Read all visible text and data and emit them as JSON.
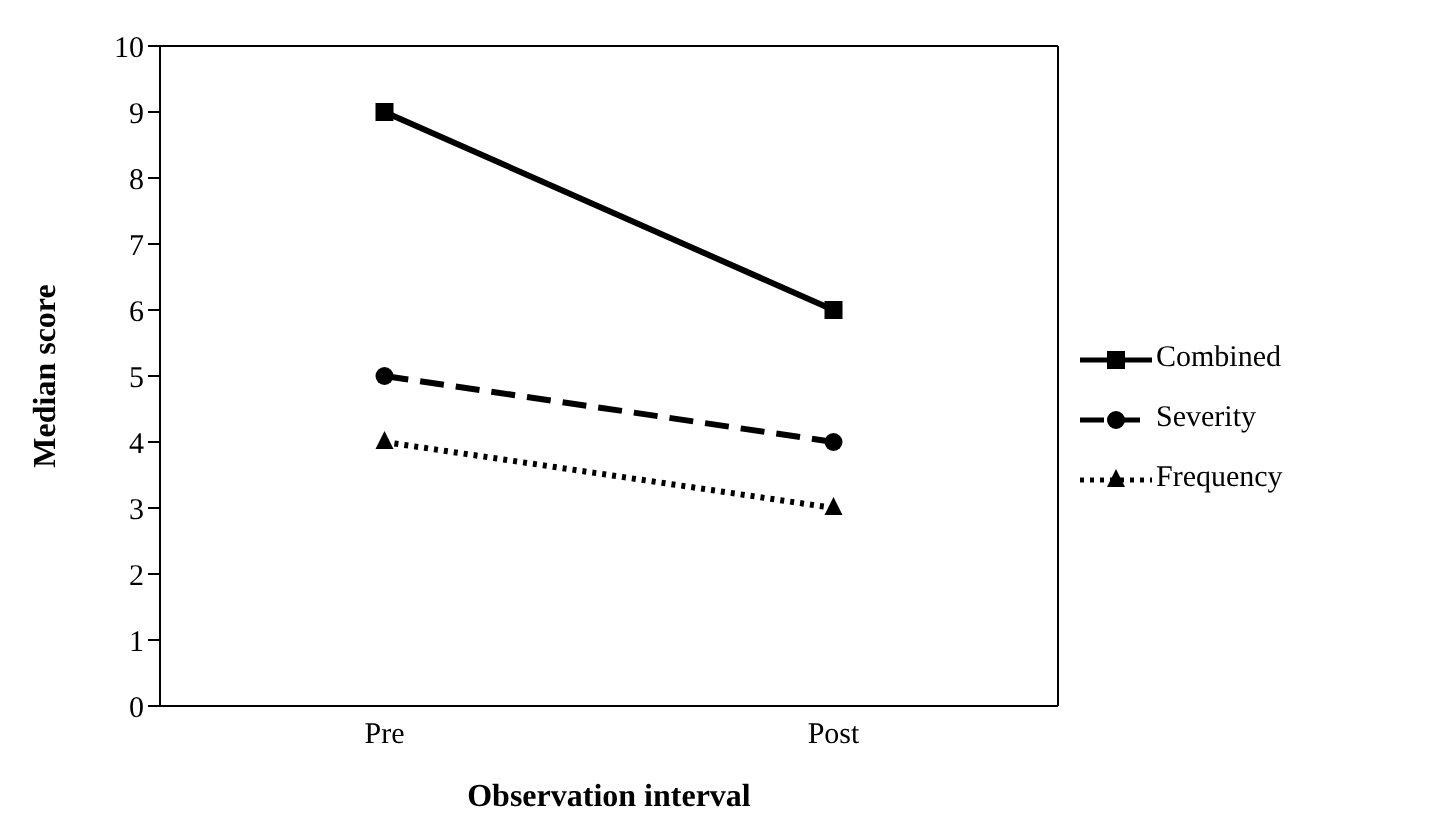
{
  "chart_data": {
    "type": "line",
    "xlabel": "Observation interval",
    "ylabel": "Median score",
    "categories": [
      "Pre",
      "Post"
    ],
    "series": [
      {
        "name": "Combined",
        "color": "#000000",
        "values": [
          9,
          6
        ],
        "marker": "square",
        "line_style": "solid"
      },
      {
        "name": "Severity",
        "color": "#000000",
        "values": [
          5,
          4
        ],
        "marker": "circle",
        "line_style": "dashed"
      },
      {
        "name": "Frequency",
        "color": "#000000",
        "values": [
          4,
          3
        ],
        "marker": "triangle",
        "line_style": "dotted"
      }
    ],
    "ylim": [
      0,
      10
    ],
    "yticks": [
      0,
      1,
      2,
      3,
      4,
      5,
      6,
      7,
      8,
      9,
      10
    ],
    "grid": false,
    "legend": "right"
  }
}
